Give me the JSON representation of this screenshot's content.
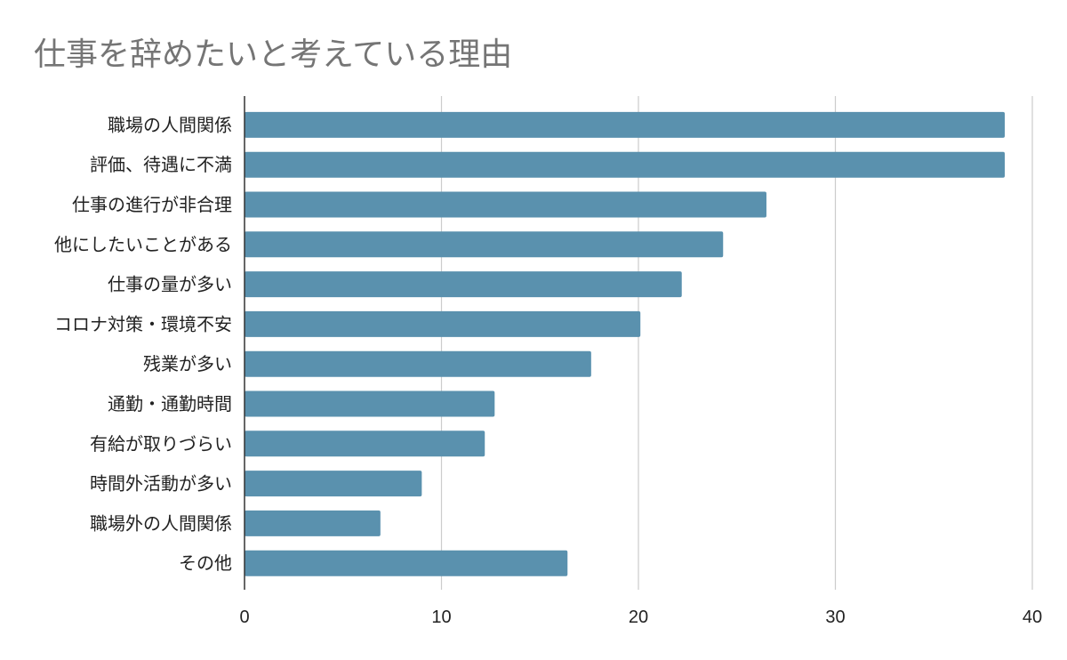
{
  "chart_data": {
    "type": "bar",
    "orientation": "horizontal",
    "title": "仕事を辞めたいと考えている理由",
    "categories": [
      "職場の人間関係",
      "評価、待遇に不満",
      "仕事の進行が非合理",
      "他にしたいことがある",
      "仕事の量が多い",
      "コロナ対策・環境不安",
      "残業が多い",
      "通勤・通勤時間",
      "有給が取りづらい",
      "時間外活動が多い",
      "職場外の人間関係",
      "その他"
    ],
    "values": [
      38.6,
      38.6,
      26.5,
      24.3,
      22.2,
      20.1,
      17.6,
      12.7,
      12.2,
      9.0,
      6.9,
      16.4
    ],
    "xlim": [
      0,
      40
    ],
    "xticks": [
      0,
      10,
      20,
      30,
      40
    ],
    "xlabel": "",
    "ylabel": "",
    "grid": true,
    "bar_color": "#5a91ae",
    "grid_color": "#cccccc",
    "axis_color": "#333333"
  }
}
